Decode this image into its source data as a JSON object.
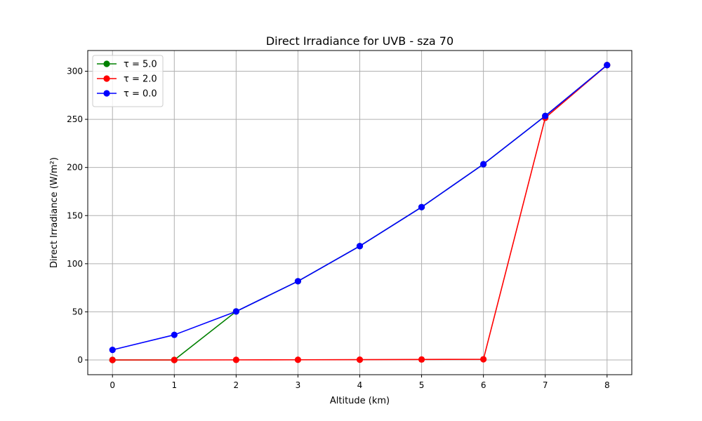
{
  "chart_data": {
    "type": "line",
    "title": "Direct Irradiance for UVB - sza 70",
    "xlabel": "Altitude (km)",
    "ylabel": "Direct Irradiance (W/m²)",
    "x": [
      0,
      1,
      2,
      3,
      4,
      5,
      6,
      7,
      8
    ],
    "xlim": [
      -0.4,
      8.4
    ],
    "ylim": [
      -15.3,
      321.5
    ],
    "xticks": [
      0,
      1,
      2,
      3,
      4,
      5,
      6,
      7,
      8
    ],
    "yticks": [
      0,
      50,
      100,
      150,
      200,
      250,
      300
    ],
    "grid": true,
    "legend_position": "upper-left",
    "series": [
      {
        "name": "τ = 5.0",
        "color": "#008000",
        "values": [
          0.0,
          0.0,
          50.4,
          81.8,
          118.3,
          158.8,
          203.4,
          253.5,
          306.4
        ]
      },
      {
        "name": "τ = 2.0",
        "color": "#ff0000",
        "values": [
          0.0,
          0.0,
          0.1,
          0.2,
          0.3,
          0.5,
          0.7,
          251.6,
          306.4
        ]
      },
      {
        "name": "τ = 0.0",
        "color": "#0000ff",
        "values": [
          10.5,
          26.1,
          50.4,
          81.8,
          118.3,
          158.8,
          203.4,
          253.5,
          306.4
        ]
      }
    ]
  }
}
